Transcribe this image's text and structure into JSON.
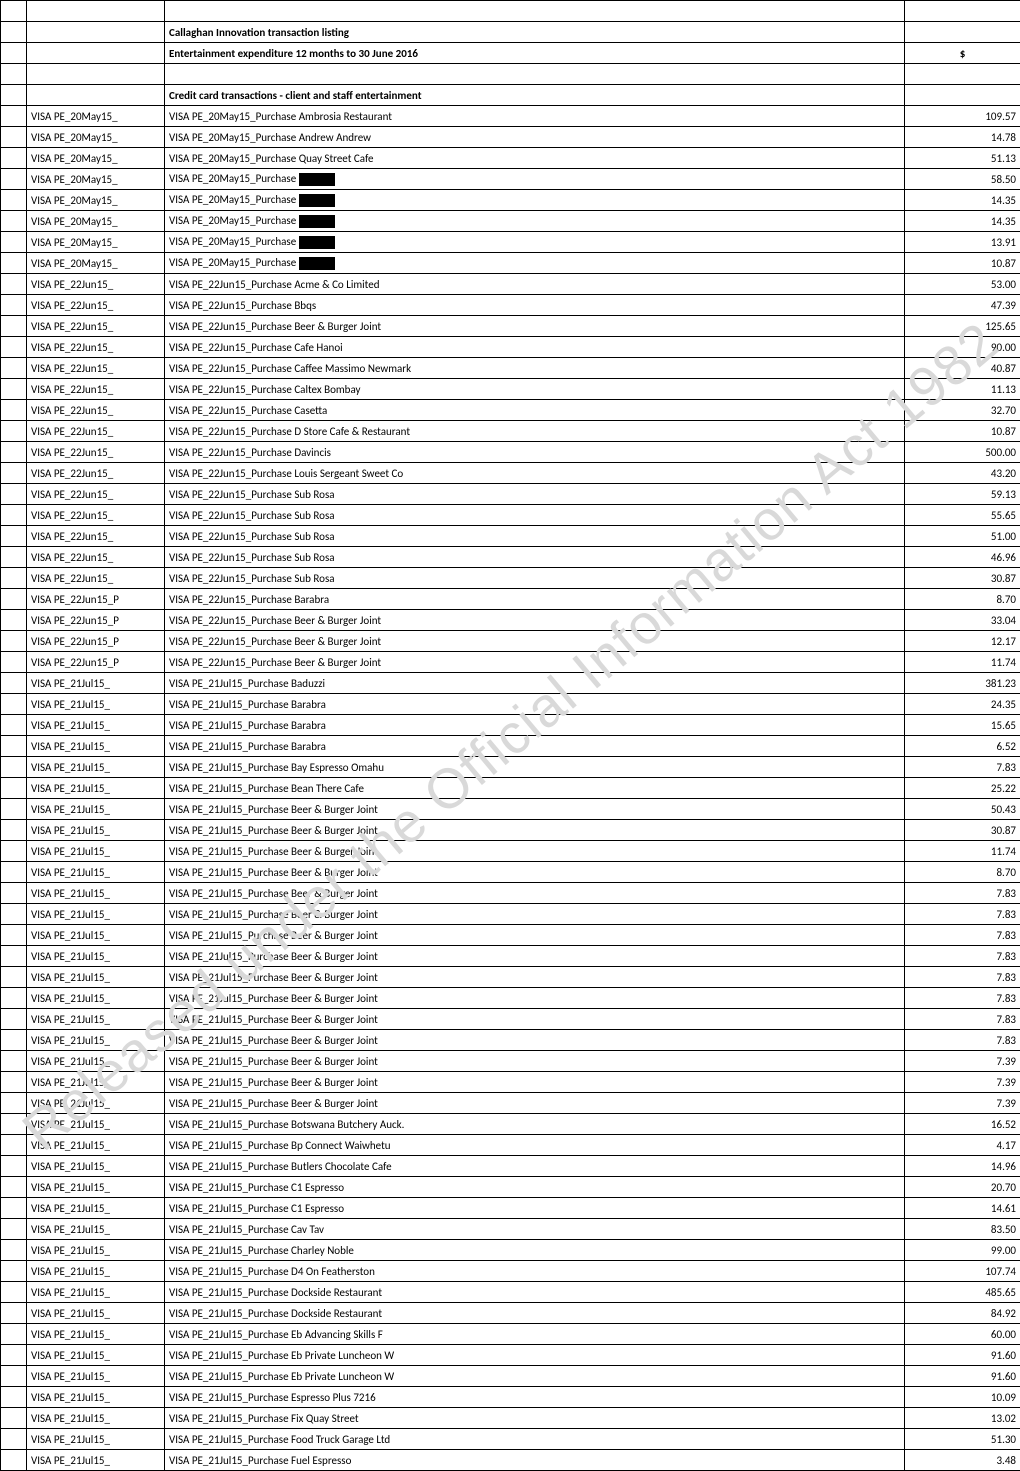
{
  "watermark": "Released under the Official Information Act 1982",
  "header": {
    "title": "Callaghan Innovation transaction listing",
    "subtitle": "Entertainment expenditure 12 months to 30 June 2016",
    "currency": "$",
    "section": "Credit card transactions - client and staff entertainment"
  },
  "rows": [
    {
      "ref": "VISA PE_20May15_",
      "desc": "VISA PE_20May15_Purchase Ambrosia Restaurant",
      "amt": "109.57",
      "redact": false
    },
    {
      "ref": "VISA PE_20May15_",
      "desc": "VISA PE_20May15_Purchase Andrew Andrew",
      "amt": "14.78",
      "redact": false
    },
    {
      "ref": "VISA PE_20May15_",
      "desc": "VISA PE_20May15_Purchase Quay Street Cafe",
      "amt": "51.13",
      "redact": false
    },
    {
      "ref": "VISA PE_20May15_",
      "desc": "VISA PE_20May15_Purchase",
      "amt": "58.50",
      "redact": true
    },
    {
      "ref": "VISA PE_20May15_",
      "desc": "VISA PE_20May15_Purchase",
      "amt": "14.35",
      "redact": true
    },
    {
      "ref": "VISA PE_20May15_",
      "desc": "VISA PE_20May15_Purchase",
      "amt": "14.35",
      "redact": true
    },
    {
      "ref": "VISA PE_20May15_",
      "desc": "VISA PE_20May15_Purchase",
      "amt": "13.91",
      "redact": true
    },
    {
      "ref": "VISA PE_20May15_",
      "desc": "VISA PE_20May15_Purchase",
      "amt": "10.87",
      "redact": true
    },
    {
      "ref": "VISA PE_22Jun15_",
      "desc": "VISA PE_22Jun15_Purchase Acme & Co Limited",
      "amt": "53.00",
      "redact": false
    },
    {
      "ref": "VISA PE_22Jun15_",
      "desc": "VISA PE_22Jun15_Purchase Bbqs",
      "amt": "47.39",
      "redact": false
    },
    {
      "ref": "VISA PE_22Jun15_",
      "desc": "VISA PE_22Jun15_Purchase Beer & Burger Joint",
      "amt": "125.65",
      "redact": false
    },
    {
      "ref": "VISA PE_22Jun15_",
      "desc": "VISA PE_22Jun15_Purchase Cafe Hanoi",
      "amt": "90.00",
      "redact": false
    },
    {
      "ref": "VISA PE_22Jun15_",
      "desc": "VISA PE_22Jun15_Purchase Caffee Massimo Newmark",
      "amt": "40.87",
      "redact": false
    },
    {
      "ref": "VISA PE_22Jun15_",
      "desc": "VISA PE_22Jun15_Purchase Caltex Bombay",
      "amt": "11.13",
      "redact": false
    },
    {
      "ref": "VISA PE_22Jun15_",
      "desc": "VISA PE_22Jun15_Purchase Casetta",
      "amt": "32.70",
      "redact": false
    },
    {
      "ref": "VISA PE_22Jun15_",
      "desc": "VISA PE_22Jun15_Purchase D Store Cafe & Restaurant",
      "amt": "10.87",
      "redact": false
    },
    {
      "ref": "VISA PE_22Jun15_",
      "desc": "VISA PE_22Jun15_Purchase Davincis",
      "amt": "500.00",
      "redact": false
    },
    {
      "ref": "VISA PE_22Jun15_",
      "desc": "VISA PE_22Jun15_Purchase Louis Sergeant  Sweet Co",
      "amt": "43.20",
      "redact": false
    },
    {
      "ref": "VISA PE_22Jun15_",
      "desc": "VISA PE_22Jun15_Purchase Sub Rosa",
      "amt": "59.13",
      "redact": false
    },
    {
      "ref": "VISA PE_22Jun15_",
      "desc": "VISA PE_22Jun15_Purchase Sub Rosa",
      "amt": "55.65",
      "redact": false
    },
    {
      "ref": "VISA PE_22Jun15_",
      "desc": "VISA PE_22Jun15_Purchase Sub Rosa",
      "amt": "51.00",
      "redact": false
    },
    {
      "ref": "VISA PE_22Jun15_",
      "desc": "VISA PE_22Jun15_Purchase Sub Rosa",
      "amt": "46.96",
      "redact": false
    },
    {
      "ref": "VISA PE_22Jun15_",
      "desc": "VISA PE_22Jun15_Purchase Sub Rosa",
      "amt": "30.87",
      "redact": false
    },
    {
      "ref": "VISA PE_22Jun15_P",
      "desc": "VISA PE_22Jun15_Purchase Barabra",
      "amt": "8.70",
      "redact": false
    },
    {
      "ref": "VISA PE_22Jun15_P",
      "desc": "VISA PE_22Jun15_Purchase Beer & Burger Joint",
      "amt": "33.04",
      "redact": false
    },
    {
      "ref": "VISA PE_22Jun15_P",
      "desc": "VISA PE_22Jun15_Purchase Beer & Burger Joint",
      "amt": "12.17",
      "redact": false
    },
    {
      "ref": "VISA PE_22Jun15_P",
      "desc": "VISA PE_22Jun15_Purchase Beer & Burger Joint",
      "amt": "11.74",
      "redact": false
    },
    {
      "ref": "VISA PE_21Jul15_",
      "desc": "VISA PE_21Jul15_Purchase Baduzzi",
      "amt": "381.23",
      "redact": false
    },
    {
      "ref": "VISA PE_21Jul15_",
      "desc": "VISA PE_21Jul15_Purchase Barabra",
      "amt": "24.35",
      "redact": false
    },
    {
      "ref": "VISA PE_21Jul15_",
      "desc": "VISA PE_21Jul15_Purchase Barabra",
      "amt": "15.65",
      "redact": false
    },
    {
      "ref": "VISA PE_21Jul15_",
      "desc": "VISA PE_21Jul15_Purchase Barabra",
      "amt": "6.52",
      "redact": false
    },
    {
      "ref": "VISA PE_21Jul15_",
      "desc": "VISA PE_21Jul15_Purchase Bay Espresso Omahu",
      "amt": "7.83",
      "redact": false
    },
    {
      "ref": "VISA PE_21Jul15_",
      "desc": "VISA PE_21Jul15_Purchase Bean There Cafe",
      "amt": "25.22",
      "redact": false
    },
    {
      "ref": "VISA PE_21Jul15_",
      "desc": "VISA PE_21Jul15_Purchase Beer & Burger Joint",
      "amt": "50.43",
      "redact": false
    },
    {
      "ref": "VISA PE_21Jul15_",
      "desc": "VISA PE_21Jul15_Purchase Beer & Burger Joint",
      "amt": "30.87",
      "redact": false
    },
    {
      "ref": "VISA PE_21Jul15_",
      "desc": "VISA PE_21Jul15_Purchase Beer & Burger Joint",
      "amt": "11.74",
      "redact": false
    },
    {
      "ref": "VISA PE_21Jul15_",
      "desc": "VISA PE_21Jul15_Purchase Beer & Burger Joint",
      "amt": "8.70",
      "redact": false
    },
    {
      "ref": "VISA PE_21Jul15_",
      "desc": "VISA PE_21Jul15_Purchase Beer & Burger Joint",
      "amt": "7.83",
      "redact": false
    },
    {
      "ref": "VISA PE_21Jul15_",
      "desc": "VISA PE_21Jul15_Purchase Beer & Burger Joint",
      "amt": "7.83",
      "redact": false
    },
    {
      "ref": "VISA PE_21Jul15_",
      "desc": "VISA PE_21Jul15_Purchase Beer & Burger Joint",
      "amt": "7.83",
      "redact": false
    },
    {
      "ref": "VISA PE_21Jul15_",
      "desc": "VISA PE_21Jul15_Purchase Beer & Burger Joint",
      "amt": "7.83",
      "redact": false
    },
    {
      "ref": "VISA PE_21Jul15_",
      "desc": "VISA PE_21Jul15_Purchase Beer & Burger Joint",
      "amt": "7.83",
      "redact": false
    },
    {
      "ref": "VISA PE_21Jul15_",
      "desc": "VISA PE_21Jul15_Purchase Beer & Burger Joint",
      "amt": "7.83",
      "redact": false
    },
    {
      "ref": "VISA PE_21Jul15_",
      "desc": "VISA PE_21Jul15_Purchase Beer & Burger Joint",
      "amt": "7.83",
      "redact": false
    },
    {
      "ref": "VISA PE_21Jul15_",
      "desc": "VISA PE_21Jul15_Purchase Beer & Burger Joint",
      "amt": "7.83",
      "redact": false
    },
    {
      "ref": "VISA PE_21Jul15_",
      "desc": "VISA PE_21Jul15_Purchase Beer & Burger Joint",
      "amt": "7.39",
      "redact": false
    },
    {
      "ref": "VISA PE_21Jul15_",
      "desc": "VISA PE_21Jul15_Purchase Beer & Burger Joint",
      "amt": "7.39",
      "redact": false
    },
    {
      "ref": "VISA PE_21Jul15_",
      "desc": "VISA PE_21Jul15_Purchase Beer & Burger Joint",
      "amt": "7.39",
      "redact": false
    },
    {
      "ref": "VISA PE_21Jul15_",
      "desc": "VISA PE_21Jul15_Purchase Botswana Butchery Auck.",
      "amt": "16.52",
      "redact": false
    },
    {
      "ref": "VISA PE_21Jul15_",
      "desc": "VISA PE_21Jul15_Purchase Bp Connect Waiwhetu",
      "amt": "4.17",
      "redact": false
    },
    {
      "ref": "VISA PE_21Jul15_",
      "desc": "VISA PE_21Jul15_Purchase Butlers Chocolate Cafe",
      "amt": "14.96",
      "redact": false
    },
    {
      "ref": "VISA PE_21Jul15_",
      "desc": "VISA PE_21Jul15_Purchase C1 Espresso",
      "amt": "20.70",
      "redact": false
    },
    {
      "ref": "VISA PE_21Jul15_",
      "desc": "VISA PE_21Jul15_Purchase C1 Espresso",
      "amt": "14.61",
      "redact": false
    },
    {
      "ref": "VISA PE_21Jul15_",
      "desc": "VISA PE_21Jul15_Purchase Cav Tav",
      "amt": "83.50",
      "redact": false
    },
    {
      "ref": "VISA PE_21Jul15_",
      "desc": "VISA PE_21Jul15_Purchase Charley Noble",
      "amt": "99.00",
      "redact": false
    },
    {
      "ref": "VISA PE_21Jul15_",
      "desc": "VISA PE_21Jul15_Purchase D4 On Featherston",
      "amt": "107.74",
      "redact": false
    },
    {
      "ref": "VISA PE_21Jul15_",
      "desc": "VISA PE_21Jul15_Purchase Dockside Restaurant",
      "amt": "485.65",
      "redact": false
    },
    {
      "ref": "VISA PE_21Jul15_",
      "desc": "VISA PE_21Jul15_Purchase Dockside Restaurant",
      "amt": "84.92",
      "redact": false
    },
    {
      "ref": "VISA PE_21Jul15_",
      "desc": "VISA PE_21Jul15_Purchase Eb Advancing Skills F",
      "amt": "60.00",
      "redact": false
    },
    {
      "ref": "VISA PE_21Jul15_",
      "desc": "VISA PE_21Jul15_Purchase Eb Private Luncheon W",
      "amt": "91.60",
      "redact": false
    },
    {
      "ref": "VISA PE_21Jul15_",
      "desc": "VISA PE_21Jul15_Purchase Eb Private Luncheon W",
      "amt": "91.60",
      "redact": false
    },
    {
      "ref": "VISA PE_21Jul15_",
      "desc": "VISA PE_21Jul15_Purchase Espresso Plus 7216",
      "amt": "10.09",
      "redact": false
    },
    {
      "ref": "VISA PE_21Jul15_",
      "desc": "VISA PE_21Jul15_Purchase Fix Quay Street",
      "amt": "13.02",
      "redact": false
    },
    {
      "ref": "VISA PE_21Jul15_",
      "desc": "VISA PE_21Jul15_Purchase Food Truck Garage Ltd",
      "amt": "51.30",
      "redact": false
    },
    {
      "ref": "VISA PE_21Jul15_",
      "desc": "VISA PE_21Jul15_Purchase Fuel Espresso",
      "amt": "3.48",
      "redact": false
    }
  ]
}
